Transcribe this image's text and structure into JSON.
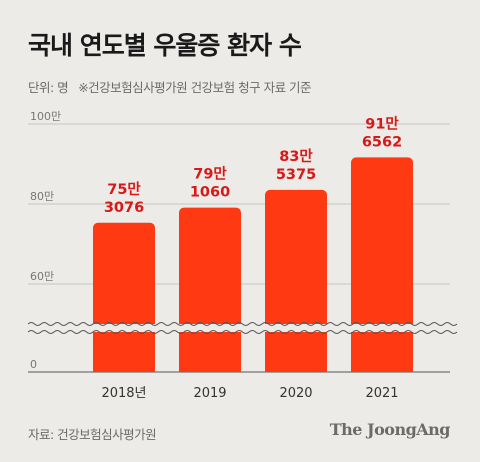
{
  "title": "국내 연도별 우울증 환자 수",
  "subtitle": {
    "unit": "단위: 명",
    "note": "※건강보험심사평가원 건강보험 청구 자료 기준"
  },
  "source": "자료: 건강보험심사평가원",
  "logo": "The JoongAng",
  "colors": {
    "bar": "#ff3a12",
    "label": "#d61a1a",
    "background": "#ecebe7"
  },
  "chart_data": {
    "type": "bar",
    "title": "국내 연도별 우울증 환자 수",
    "xlabel": "",
    "ylabel": "",
    "unit": "명",
    "categories": [
      "2018년",
      "2019",
      "2020",
      "2021"
    ],
    "values": [
      753076,
      791060,
      835375,
      916562
    ],
    "data_labels": [
      [
        "75만",
        "3076"
      ],
      [
        "79만",
        "1060"
      ],
      [
        "83만",
        "5375"
      ],
      [
        "91만",
        "6562"
      ]
    ],
    "y_ticks": [
      {
        "value": 1000000,
        "label": "100만"
      },
      {
        "value": 800000,
        "label": "80만"
      },
      {
        "value": 600000,
        "label": "60만"
      },
      {
        "value": 0,
        "label": "0"
      }
    ],
    "ylim": [
      0,
      1000000
    ],
    "axis_break": true,
    "grid": true
  }
}
